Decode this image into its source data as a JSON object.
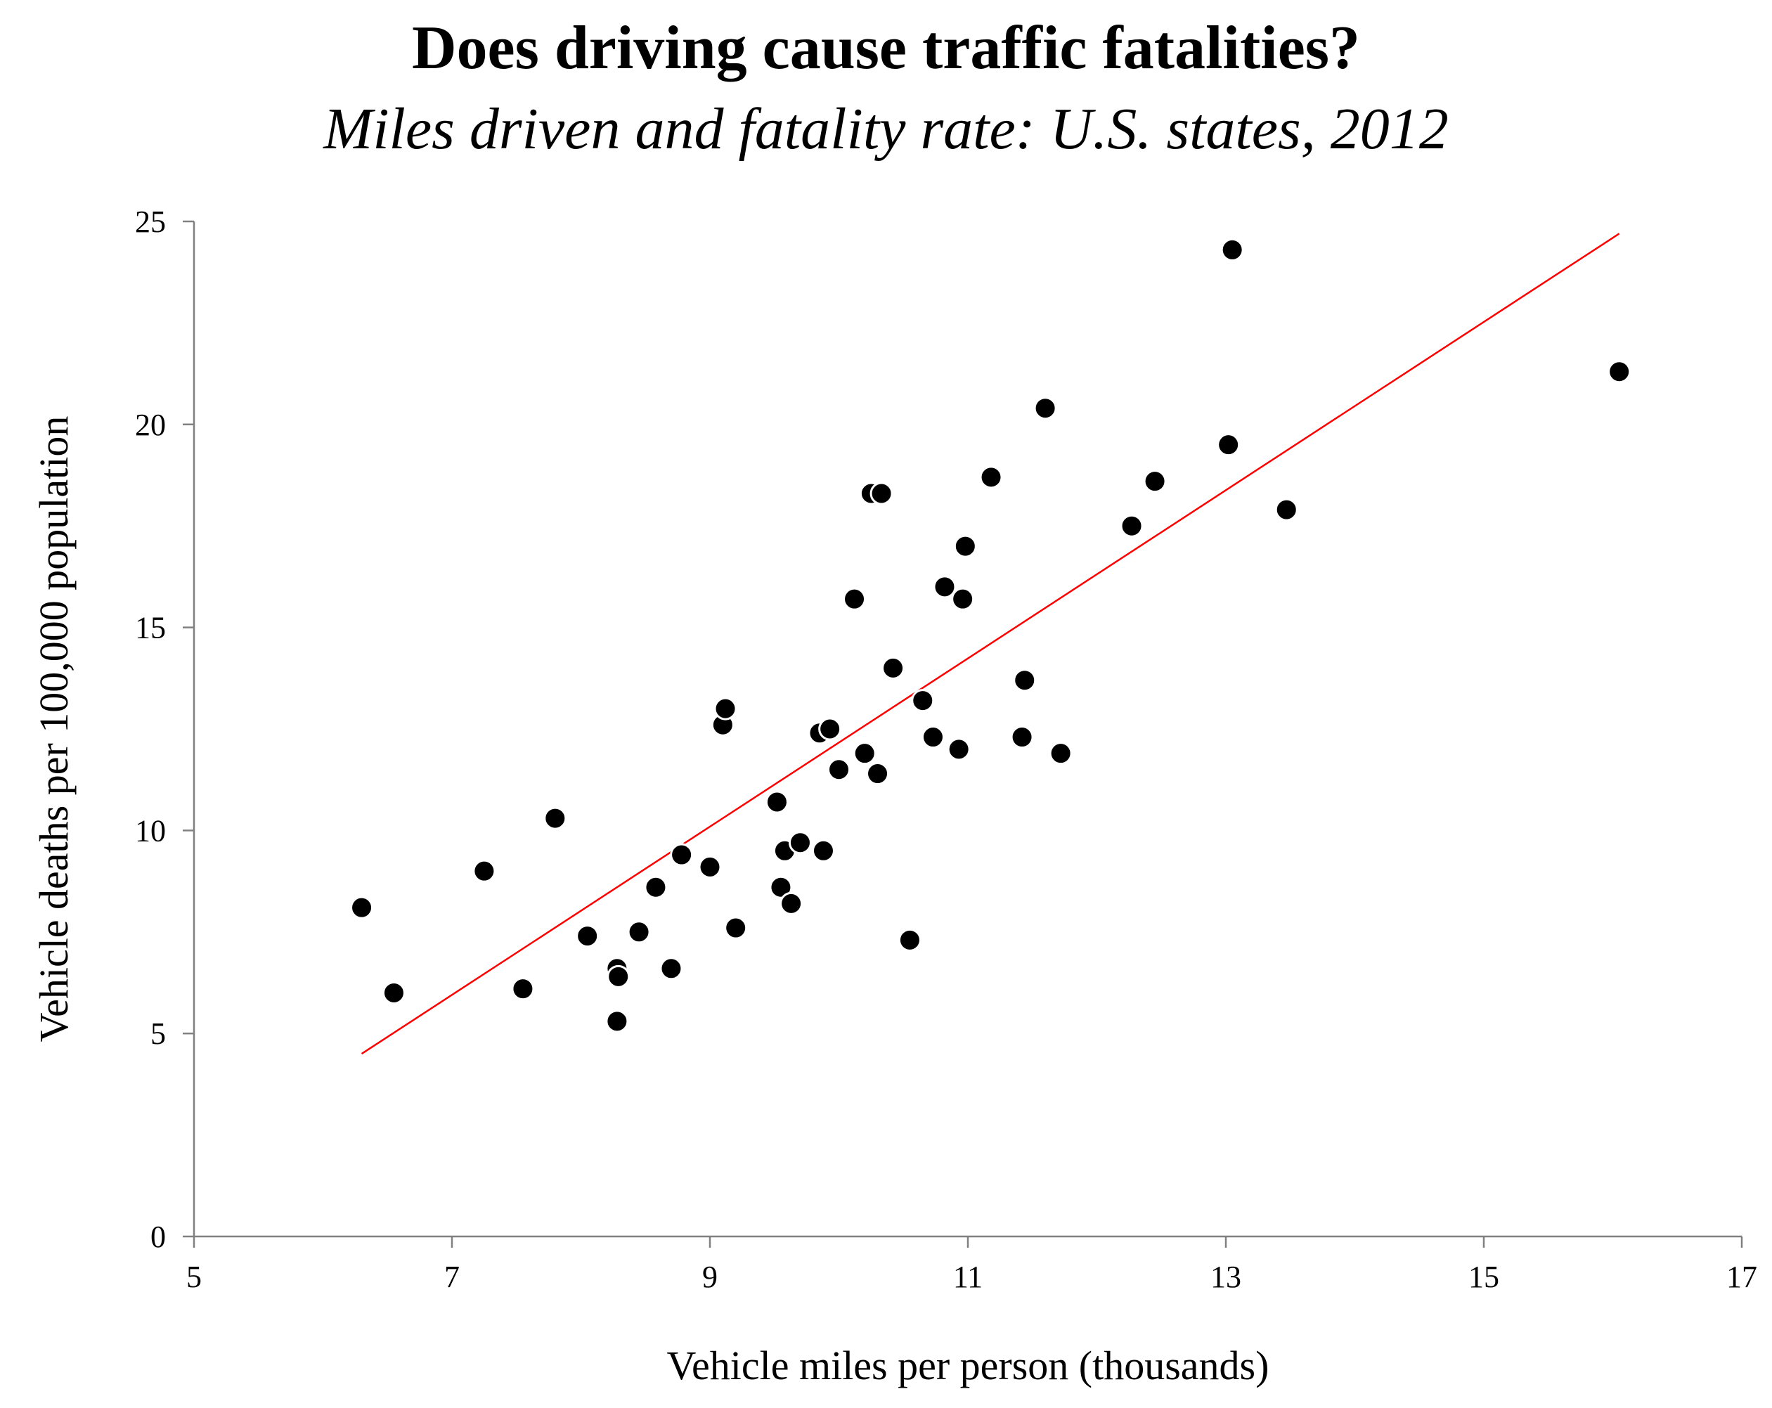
{
  "title": "Does driving cause traffic fatalities?",
  "subtitle": "Miles driven and fatality rate: U.S. states, 2012",
  "chart_data": {
    "type": "scatter",
    "title": "Does driving cause traffic fatalities?",
    "subtitle": "Miles driven and fatality rate: U.S. states, 2012",
    "xlabel": "Vehicle miles per person (thousands)",
    "ylabel": "Vehicle deaths per 100,000 population",
    "xlim": [
      5,
      17
    ],
    "ylim": [
      0,
      25
    ],
    "xticks": [
      5,
      7,
      9,
      11,
      13,
      15,
      17
    ],
    "yticks": [
      0,
      5,
      10,
      15,
      20,
      25
    ],
    "grid": false,
    "marker_color": "#000000",
    "trendline_color": "#ff0000",
    "points": [
      [
        6.3,
        8.1
      ],
      [
        6.55,
        6.0
      ],
      [
        7.25,
        9.0
      ],
      [
        7.55,
        6.1
      ],
      [
        7.8,
        10.3
      ],
      [
        8.05,
        7.4
      ],
      [
        8.28,
        6.6
      ],
      [
        8.29,
        6.4
      ],
      [
        8.28,
        5.3
      ],
      [
        8.45,
        7.5
      ],
      [
        8.58,
        8.6
      ],
      [
        8.7,
        6.6
      ],
      [
        8.78,
        9.4
      ],
      [
        9.0,
        9.1
      ],
      [
        9.1,
        12.6
      ],
      [
        9.12,
        13.0
      ],
      [
        9.2,
        7.6
      ],
      [
        9.52,
        10.7
      ],
      [
        9.55,
        8.6
      ],
      [
        9.58,
        9.5
      ],
      [
        9.63,
        8.2
      ],
      [
        9.7,
        9.7
      ],
      [
        9.85,
        12.4
      ],
      [
        9.88,
        9.5
      ],
      [
        9.93,
        12.5
      ],
      [
        10.0,
        11.5
      ],
      [
        10.12,
        15.7
      ],
      [
        10.2,
        11.9
      ],
      [
        10.25,
        18.3
      ],
      [
        10.3,
        11.4
      ],
      [
        10.33,
        18.3
      ],
      [
        10.42,
        14.0
      ],
      [
        10.55,
        7.3
      ],
      [
        10.65,
        13.2
      ],
      [
        10.73,
        12.3
      ],
      [
        10.82,
        16.0
      ],
      [
        10.93,
        12.0
      ],
      [
        10.96,
        15.7
      ],
      [
        10.98,
        17.0
      ],
      [
        11.18,
        18.7
      ],
      [
        11.42,
        12.3
      ],
      [
        11.44,
        13.7
      ],
      [
        11.6,
        20.4
      ],
      [
        11.72,
        11.9
      ],
      [
        12.27,
        17.5
      ],
      [
        12.45,
        18.6
      ],
      [
        13.02,
        19.5
      ],
      [
        13.05,
        24.3
      ],
      [
        13.47,
        17.9
      ],
      [
        16.05,
        21.3
      ]
    ],
    "trendline": [
      [
        6.3,
        4.5
      ],
      [
        16.05,
        24.7
      ]
    ]
  }
}
